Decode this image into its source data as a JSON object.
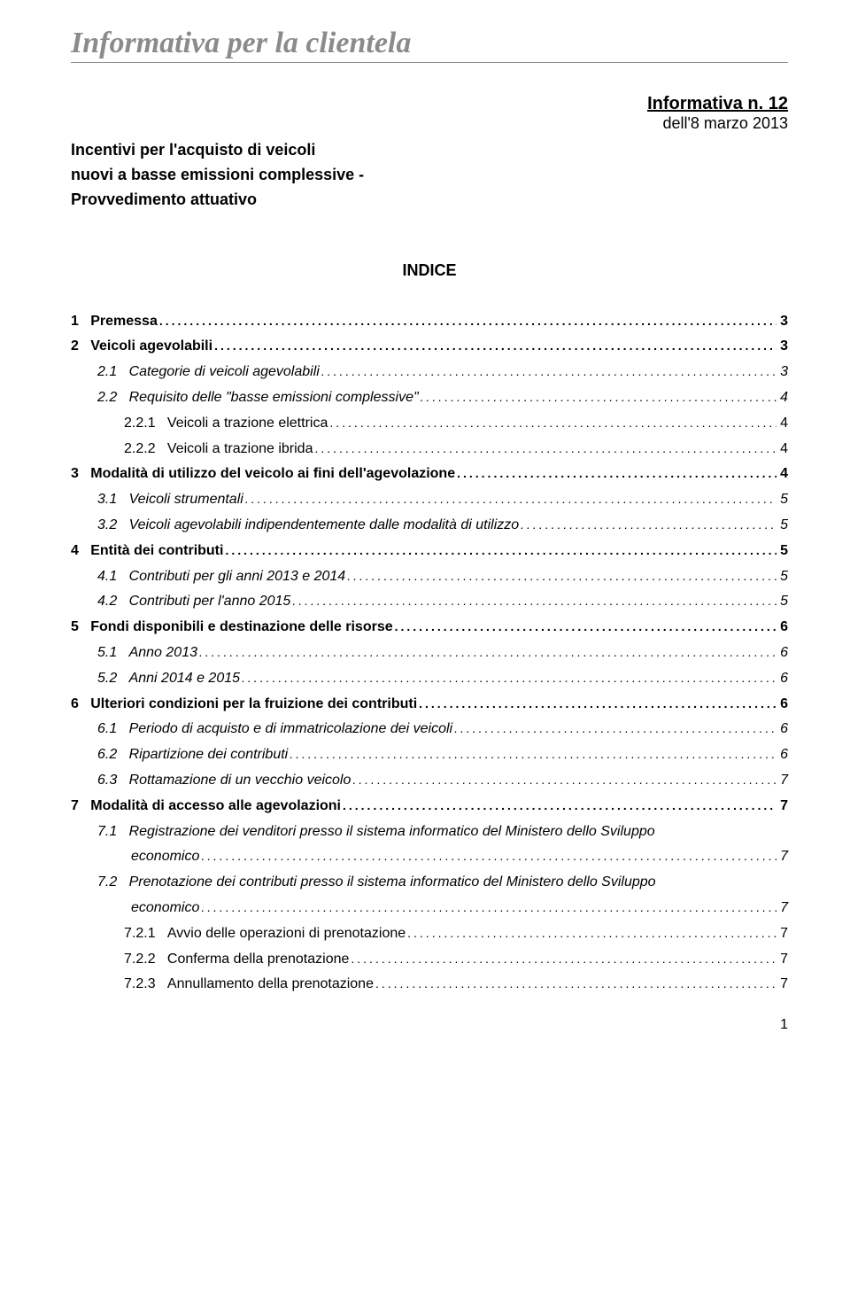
{
  "header": {
    "italic_title": "Informativa per la clientela",
    "info_label": "Informativa n. 12",
    "date": "dell'8 marzo 2013",
    "subtitle_line1": "Incentivi per l'acquisto di veicoli",
    "subtitle_line2": "nuovi a basse emissioni complessive -",
    "subtitle_line3": "Provvedimento attuativo",
    "indice": "INDICE"
  },
  "toc": [
    {
      "lvl": 1,
      "num": "1",
      "label": "Premessa",
      "page": "3"
    },
    {
      "lvl": 1,
      "num": "2",
      "label": "Veicoli agevolabili",
      "page": "3"
    },
    {
      "lvl": 2,
      "num": "2.1",
      "label": "Categorie di veicoli agevolabili",
      "page": "3"
    },
    {
      "lvl": 2,
      "num": "2.2",
      "label": "Requisito delle \"basse emissioni complessive\"",
      "page": "4"
    },
    {
      "lvl": 3,
      "num": "2.2.1",
      "label": "Veicoli a trazione elettrica",
      "page": "4"
    },
    {
      "lvl": 3,
      "num": "2.2.2",
      "label": "Veicoli a trazione ibrida",
      "page": "4"
    },
    {
      "lvl": 1,
      "num": "3",
      "label": "Modalità di utilizzo del veicolo ai fini dell'agevolazione",
      "page": "4"
    },
    {
      "lvl": 2,
      "num": "3.1",
      "label": "Veicoli strumentali",
      "page": "5"
    },
    {
      "lvl": 2,
      "num": "3.2",
      "label": "Veicoli agevolabili indipendentemente dalle modalità di utilizzo",
      "page": "5"
    },
    {
      "lvl": 1,
      "num": "4",
      "label": "Entità dei contributi",
      "page": "5"
    },
    {
      "lvl": 2,
      "num": "4.1",
      "label": "Contributi per gli anni 2013 e 2014",
      "page": "5"
    },
    {
      "lvl": 2,
      "num": "4.2",
      "label": "Contributi per l'anno 2015",
      "page": "5"
    },
    {
      "lvl": 1,
      "num": "5",
      "label": "Fondi disponibili e destinazione delle risorse",
      "page": "6"
    },
    {
      "lvl": 2,
      "num": "5.1",
      "label": "Anno 2013",
      "page": "6"
    },
    {
      "lvl": 2,
      "num": "5.2",
      "label": "Anni 2014 e 2015",
      "page": "6"
    },
    {
      "lvl": 1,
      "num": "6",
      "label": "Ulteriori condizioni per la fruizione dei contributi",
      "page": "6"
    },
    {
      "lvl": 2,
      "num": "6.1",
      "label": "Periodo di acquisto e di immatricolazione dei veicoli",
      "page": "6"
    },
    {
      "lvl": 2,
      "num": "6.2",
      "label": "Ripartizione dei contributi",
      "page": "6"
    },
    {
      "lvl": 2,
      "num": "6.3",
      "label": "Rottamazione di un vecchio veicolo",
      "page": "7"
    },
    {
      "lvl": 1,
      "num": "7",
      "label": "Modalità di accesso alle agevolazioni",
      "page": "7"
    },
    {
      "lvl": 2,
      "num": "7.1",
      "label": "Registrazione dei venditori presso il sistema informatico del Ministero dello Sviluppo",
      "label2": "economico",
      "page": "7"
    },
    {
      "lvl": 2,
      "num": "7.2",
      "label": "Prenotazione dei contributi presso il sistema informatico del Ministero dello Sviluppo",
      "label2": "economico",
      "page": "7"
    },
    {
      "lvl": 3,
      "num": "7.2.1",
      "label": "Avvio delle operazioni di prenotazione",
      "page": "7"
    },
    {
      "lvl": 3,
      "num": "7.2.2",
      "label": "Conferma della prenotazione",
      "page": "7"
    },
    {
      "lvl": 3,
      "num": "7.2.3",
      "label": "Annullamento della prenotazione",
      "page": "7"
    }
  ],
  "page_number": "1"
}
